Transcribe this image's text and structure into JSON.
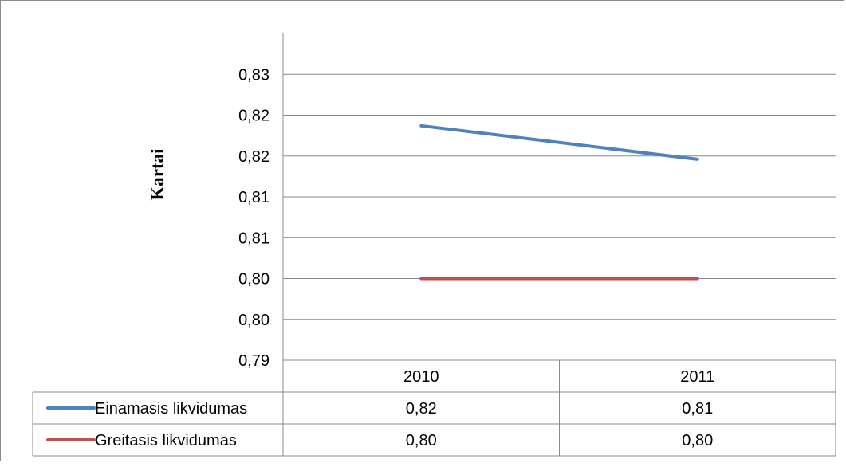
{
  "chart_data": {
    "type": "line",
    "categories": [
      "2010",
      "2011"
    ],
    "series": [
      {
        "name": "Einamasis likvidumas",
        "values": [
          0.8187,
          0.8146
        ],
        "table_values": [
          "0,82",
          "0,81"
        ],
        "color": "#4f81bd"
      },
      {
        "name": "Greitasis likvidumas",
        "values": [
          0.8,
          0.8
        ],
        "table_values": [
          "0,80",
          "0,80"
        ],
        "color": "#c0504d"
      }
    ],
    "ylabel": "Kartai",
    "xlabel": "",
    "title": "",
    "ylim": [
      0.79,
      0.83
    ],
    "y_ticks": [
      {
        "value": 0.79,
        "label": "0,79"
      },
      {
        "value": 0.795,
        "label": "0,80"
      },
      {
        "value": 0.8,
        "label": "0,80"
      },
      {
        "value": 0.805,
        "label": "0,81"
      },
      {
        "value": 0.81,
        "label": "0,81"
      },
      {
        "value": 0.815,
        "label": "0,82"
      },
      {
        "value": 0.82,
        "label": "0,82"
      },
      {
        "value": 0.825,
        "label": "0,83"
      }
    ],
    "grid": true,
    "legend": "data-table"
  }
}
